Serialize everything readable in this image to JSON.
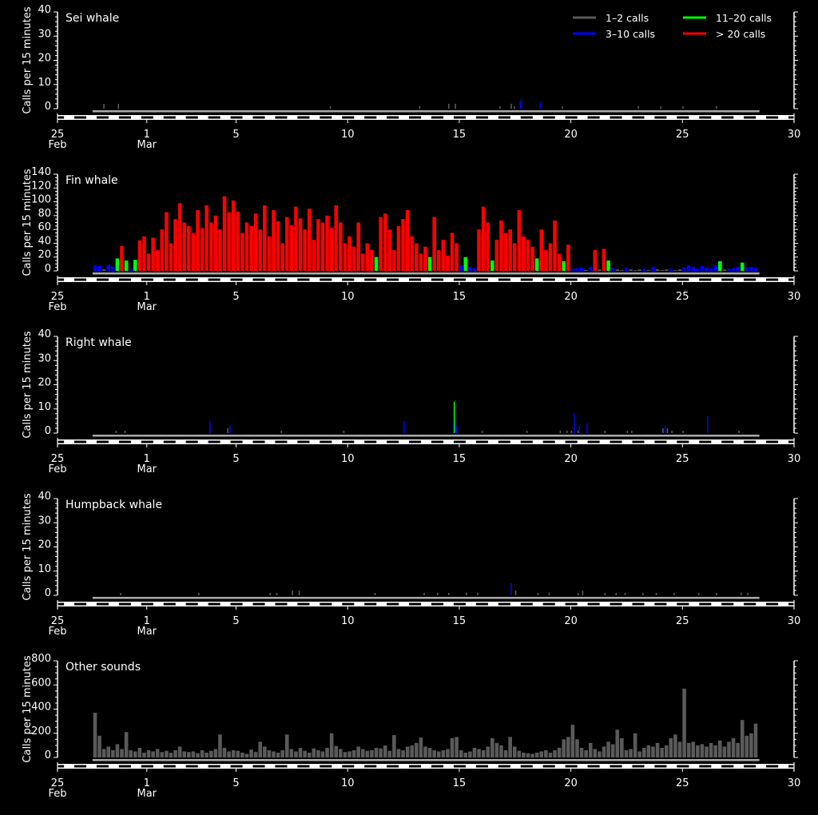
{
  "chart_data": {
    "type": "bar",
    "ylabel": "Calls per 15 minutes",
    "x_axis": {
      "unit": "days since 25 Feb",
      "range": [
        0,
        33
      ],
      "ticks": [
        {
          "d": 0,
          "label": "25",
          "month": "Feb"
        },
        {
          "d": 4,
          "label": "1",
          "month": "Mar"
        },
        {
          "d": 8,
          "label": "5",
          "month": ""
        },
        {
          "d": 13,
          "label": "10",
          "month": ""
        },
        {
          "d": 18,
          "label": "15",
          "month": ""
        },
        {
          "d": 23,
          "label": "20",
          "month": ""
        },
        {
          "d": 28,
          "label": "25",
          "month": ""
        },
        {
          "d": 33,
          "label": "30",
          "month": ""
        }
      ],
      "night_band": {
        "start_offset_days": 0.75,
        "end_offset_days": 1.29
      },
      "record_span": [
        1.57,
        31.45
      ]
    },
    "legend": {
      "placement": "top-right",
      "entries": [
        {
          "label": "1–2 calls",
          "color": "#5a5a5a",
          "min": 1,
          "max": 2
        },
        {
          "label": "3–10 calls",
          "color": "#0000ff",
          "min": 3,
          "max": 10
        },
        {
          "label": "11–20 calls",
          "color": "#00ff00",
          "min": 11,
          "max": 20
        },
        {
          "label": "> 20 calls",
          "color": "#ff0000",
          "min": 21,
          "max": 100000
        }
      ]
    },
    "panels": [
      {
        "title": "Sei whale",
        "ylim": [
          0,
          40
        ],
        "major": 10,
        "minor": 2,
        "color_mode": "category",
        "events": [
          [
            2.05,
            2
          ],
          [
            2.7,
            2
          ],
          [
            12.2,
            1
          ],
          [
            16.2,
            1
          ],
          [
            17.5,
            2
          ],
          [
            17.8,
            2
          ],
          [
            19.8,
            1
          ],
          [
            20.3,
            2
          ],
          [
            20.45,
            1
          ],
          [
            20.7,
            3
          ],
          [
            20.75,
            4
          ],
          [
            21.6,
            3
          ],
          [
            22.6,
            1
          ],
          [
            26.0,
            1
          ],
          [
            27.0,
            1
          ],
          [
            28.0,
            1
          ],
          [
            29.5,
            1
          ]
        ]
      },
      {
        "title": "Fin whale",
        "ylim": [
          0,
          140
        ],
        "major": 20,
        "minor": 5,
        "color_mode": "category",
        "bin_start": 1.6,
        "bin_width": 0.2,
        "values": [
          8,
          7,
          2,
          9,
          6,
          18,
          36,
          15,
          3,
          16,
          44,
          50,
          25,
          48,
          30,
          60,
          85,
          40,
          75,
          98,
          70,
          65,
          55,
          88,
          62,
          95,
          70,
          80,
          60,
          108,
          85,
          102,
          86,
          55,
          70,
          65,
          83,
          60,
          95,
          50,
          88,
          72,
          40,
          78,
          66,
          93,
          76,
          60,
          90,
          45,
          75,
          70,
          80,
          62,
          95,
          70,
          40,
          50,
          35,
          70,
          25,
          40,
          30,
          20,
          78,
          83,
          60,
          30,
          65,
          75,
          88,
          50,
          40,
          25,
          35,
          20,
          78,
          30,
          45,
          22,
          55,
          40,
          8,
          20,
          6,
          4,
          60,
          93,
          70,
          15,
          45,
          73,
          55,
          60,
          40,
          88,
          50,
          45,
          35,
          18,
          60,
          30,
          40,
          73,
          25,
          14,
          38,
          3,
          4,
          5,
          1,
          6,
          30,
          2,
          32,
          15,
          4,
          2,
          1,
          4,
          2,
          1,
          2,
          3,
          1,
          6,
          2,
          1,
          2,
          3,
          1,
          2,
          5,
          8,
          6,
          3,
          7,
          5,
          4,
          8,
          14,
          2,
          3,
          4,
          6,
          12,
          5,
          6,
          4
        ]
      },
      {
        "title": "Right whale",
        "ylim": [
          0,
          40
        ],
        "major": 10,
        "minor": 2,
        "color_mode": "category",
        "events": [
          [
            2.6,
            1
          ],
          [
            3.0,
            1
          ],
          [
            6.8,
            5
          ],
          [
            7.6,
            2
          ],
          [
            7.7,
            3
          ],
          [
            10.0,
            1
          ],
          [
            12.8,
            1
          ],
          [
            15.5,
            5
          ],
          [
            17.75,
            13
          ],
          [
            17.8,
            6
          ],
          [
            17.85,
            3
          ],
          [
            19.0,
            1
          ],
          [
            21.0,
            1
          ],
          [
            22.5,
            1
          ],
          [
            22.8,
            1
          ],
          [
            23.0,
            1
          ],
          [
            23.12,
            8
          ],
          [
            23.3,
            1
          ],
          [
            23.35,
            3
          ],
          [
            23.7,
            4
          ],
          [
            24.5,
            1
          ],
          [
            25.5,
            1
          ],
          [
            25.7,
            1
          ],
          [
            27.1,
            2
          ],
          [
            27.2,
            3
          ],
          [
            27.3,
            2
          ],
          [
            27.5,
            1
          ],
          [
            28.0,
            1
          ],
          [
            29.1,
            7
          ],
          [
            30.5,
            1
          ]
        ]
      },
      {
        "title": "Humpback whale",
        "ylim": [
          0,
          40
        ],
        "major": 10,
        "minor": 2,
        "color_mode": "category",
        "events": [
          [
            2.8,
            1
          ],
          [
            6.3,
            1
          ],
          [
            9.5,
            1
          ],
          [
            9.8,
            1
          ],
          [
            10.5,
            2
          ],
          [
            10.8,
            2
          ],
          [
            14.2,
            1
          ],
          [
            16.4,
            1
          ],
          [
            17.0,
            1
          ],
          [
            17.5,
            1
          ],
          [
            18.3,
            1
          ],
          [
            18.8,
            1
          ],
          [
            20.3,
            5
          ],
          [
            20.5,
            2
          ],
          [
            21.5,
            1
          ],
          [
            22.0,
            1
          ],
          [
            23.3,
            1
          ],
          [
            23.5,
            2
          ],
          [
            24.5,
            1
          ],
          [
            25.0,
            1
          ],
          [
            25.4,
            1
          ],
          [
            26.2,
            1
          ],
          [
            26.8,
            1
          ],
          [
            27.6,
            1
          ],
          [
            28.7,
            1
          ],
          [
            29.5,
            1
          ],
          [
            30.6,
            1
          ],
          [
            30.9,
            1
          ]
        ]
      },
      {
        "title": "Other sounds",
        "ylim": [
          0,
          800
        ],
        "major": 200,
        "minor": 50,
        "color_mode": "single",
        "color": "#5a5a5a",
        "bin_start": 1.6,
        "bin_width": 0.2,
        "values": [
          370,
          180,
          70,
          90,
          60,
          110,
          70,
          210,
          60,
          50,
          80,
          40,
          60,
          50,
          70,
          45,
          55,
          40,
          60,
          90,
          50,
          45,
          50,
          35,
          60,
          40,
          55,
          70,
          190,
          80,
          50,
          60,
          55,
          40,
          30,
          65,
          45,
          130,
          90,
          60,
          50,
          40,
          60,
          190,
          70,
          50,
          80,
          55,
          40,
          75,
          60,
          50,
          80,
          200,
          95,
          70,
          45,
          50,
          60,
          90,
          70,
          55,
          60,
          80,
          75,
          100,
          55,
          185,
          70,
          60,
          90,
          100,
          120,
          165,
          90,
          80,
          60,
          50,
          60,
          70,
          160,
          170,
          60,
          40,
          50,
          80,
          70,
          60,
          90,
          160,
          120,
          100,
          60,
          170,
          90,
          55,
          40,
          35,
          30,
          40,
          50,
          60,
          40,
          60,
          80,
          150,
          170,
          270,
          150,
          80,
          60,
          120,
          70,
          50,
          90,
          130,
          110,
          230,
          160,
          60,
          70,
          200,
          50,
          80,
          100,
          90,
          120,
          80,
          100,
          160,
          190,
          130,
          570,
          120,
          130,
          100,
          110,
          90,
          120,
          100,
          140,
          90,
          130,
          160,
          120,
          310,
          180,
          200,
          280
        ]
      }
    ]
  }
}
